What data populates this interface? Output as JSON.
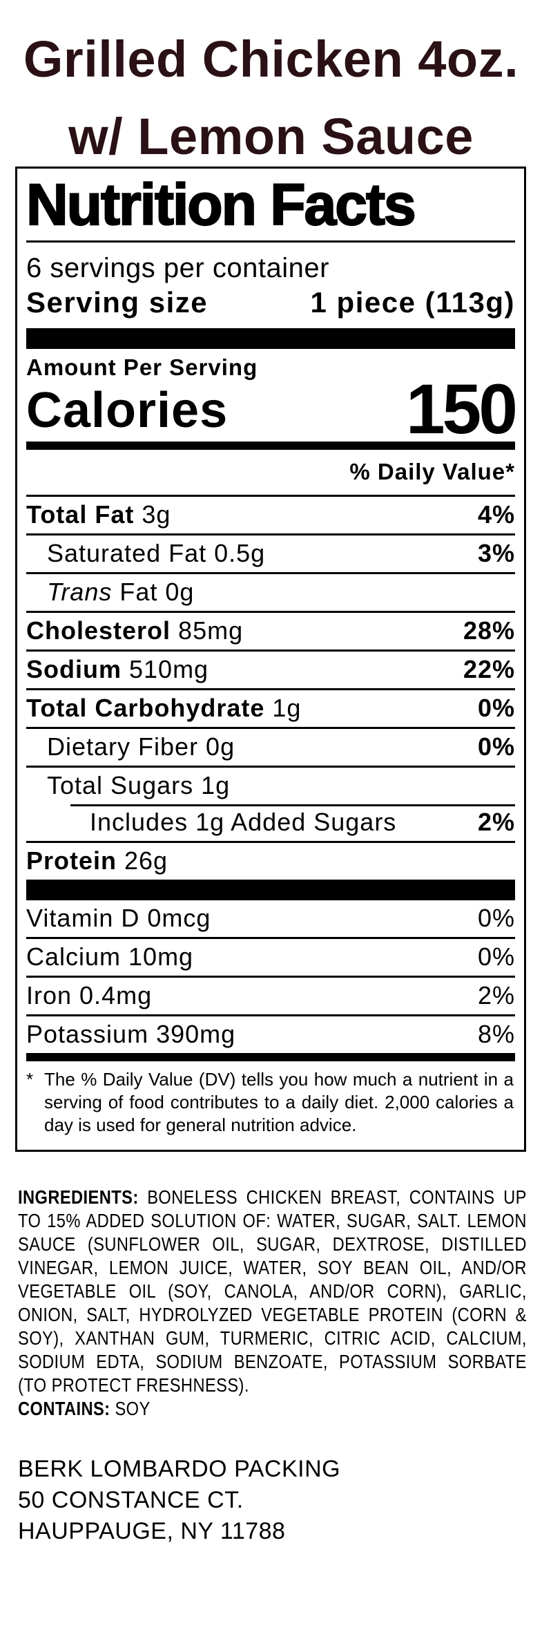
{
  "product_title": {
    "line1": "Grilled Chicken 4oz.",
    "line2": "w/ Lemon Sauce",
    "color": "#2a1115"
  },
  "nutrition_facts": {
    "heading": "Nutrition Facts",
    "servings_per_container": "6 servings per container",
    "serving_size": {
      "label": "Serving size",
      "value": "1 piece (113g)"
    },
    "amount_per_serving": "Amount Per Serving",
    "calories": {
      "label": "Calories",
      "value": "150"
    },
    "daily_value_header": "% Daily Value*",
    "rows": [
      {
        "strong": "Total Fat",
        "italic": "",
        "text": " 3g",
        "dv": "4%"
      },
      {
        "strong": "",
        "italic": "",
        "text": "Saturated Fat 0.5g",
        "dv": "3%"
      },
      {
        "strong": "",
        "italic": "Trans",
        "text": " Fat 0g",
        "dv": ""
      },
      {
        "strong": "Cholesterol",
        "italic": "",
        "text": " 85mg",
        "dv": "28%"
      },
      {
        "strong": "Sodium",
        "italic": "",
        "text": " 510mg",
        "dv": "22%"
      },
      {
        "strong": "Total Carbohydrate",
        "italic": "",
        "text": " 1g",
        "dv": "0%"
      },
      {
        "strong": "",
        "italic": "",
        "text": "Dietary Fiber 0g",
        "dv": "0%"
      },
      {
        "strong": "",
        "italic": "",
        "text": "Total Sugars 1g",
        "dv": ""
      },
      {
        "strong": "",
        "italic": "",
        "text": "Includes 1g Added Sugars",
        "dv": "2%"
      },
      {
        "strong": "Protein",
        "italic": "",
        "text": " 26g",
        "dv": ""
      }
    ],
    "micronutrients": [
      {
        "text": "Vitamin D 0mcg",
        "dv": "0%"
      },
      {
        "text": "Calcium 10mg",
        "dv": "0%"
      },
      {
        "text": "Iron 0.4mg",
        "dv": "2%"
      },
      {
        "text": "Potassium 390mg",
        "dv": "8%"
      }
    ],
    "footnote_marker": "*",
    "footnote": "The % Daily Value (DV) tells you how much a nutrient in a serving of food contributes to a daily diet. 2,000 calories a day is used for general nutrition advice."
  },
  "ingredients": {
    "label": "INGREDIENTS:",
    "text": "BONELESS CHICKEN BREAST, CONTAINS UP TO 15% ADDED SOLUTION OF: WATER, SUGAR, SALT. LEMON SAUCE (SUNFLOWER OIL, SUGAR, DEXTROSE, DISTILLED VINEGAR, LEMON JUICE, WATER, SOY BEAN OIL, AND/OR VEGETABLE OIL (SOY, CANOLA, AND/OR CORN), GARLIC, ONION, SALT, HYDROLYZED VEGETABLE PROTEIN (CORN & SOY), XANTHAN GUM, TURMERIC, CITRIC ACID, CALCIUM, SODIUM EDTA, SODIUM BENZOATE, POTASSIUM SORBATE (TO PROTECT FRESHNESS)."
  },
  "allergen": {
    "label": "CONTAINS:",
    "value": "SOY"
  },
  "manufacturer": {
    "line1": "BERK LOMBARDO PACKING",
    "line2": "50 CONSTANCE CT.",
    "line3": "HAUPPAUGE, NY 11788"
  }
}
